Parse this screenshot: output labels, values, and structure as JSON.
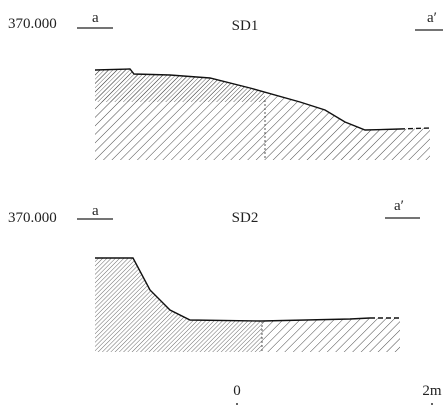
{
  "sections": [
    {
      "level": "370.000",
      "left": "a",
      "title": "SD1",
      "right": "a′"
    },
    {
      "level": "370.000",
      "left": "a",
      "title": "SD2",
      "right": "a′"
    }
  ],
  "scale": {
    "start": "0",
    "end": "2m"
  }
}
